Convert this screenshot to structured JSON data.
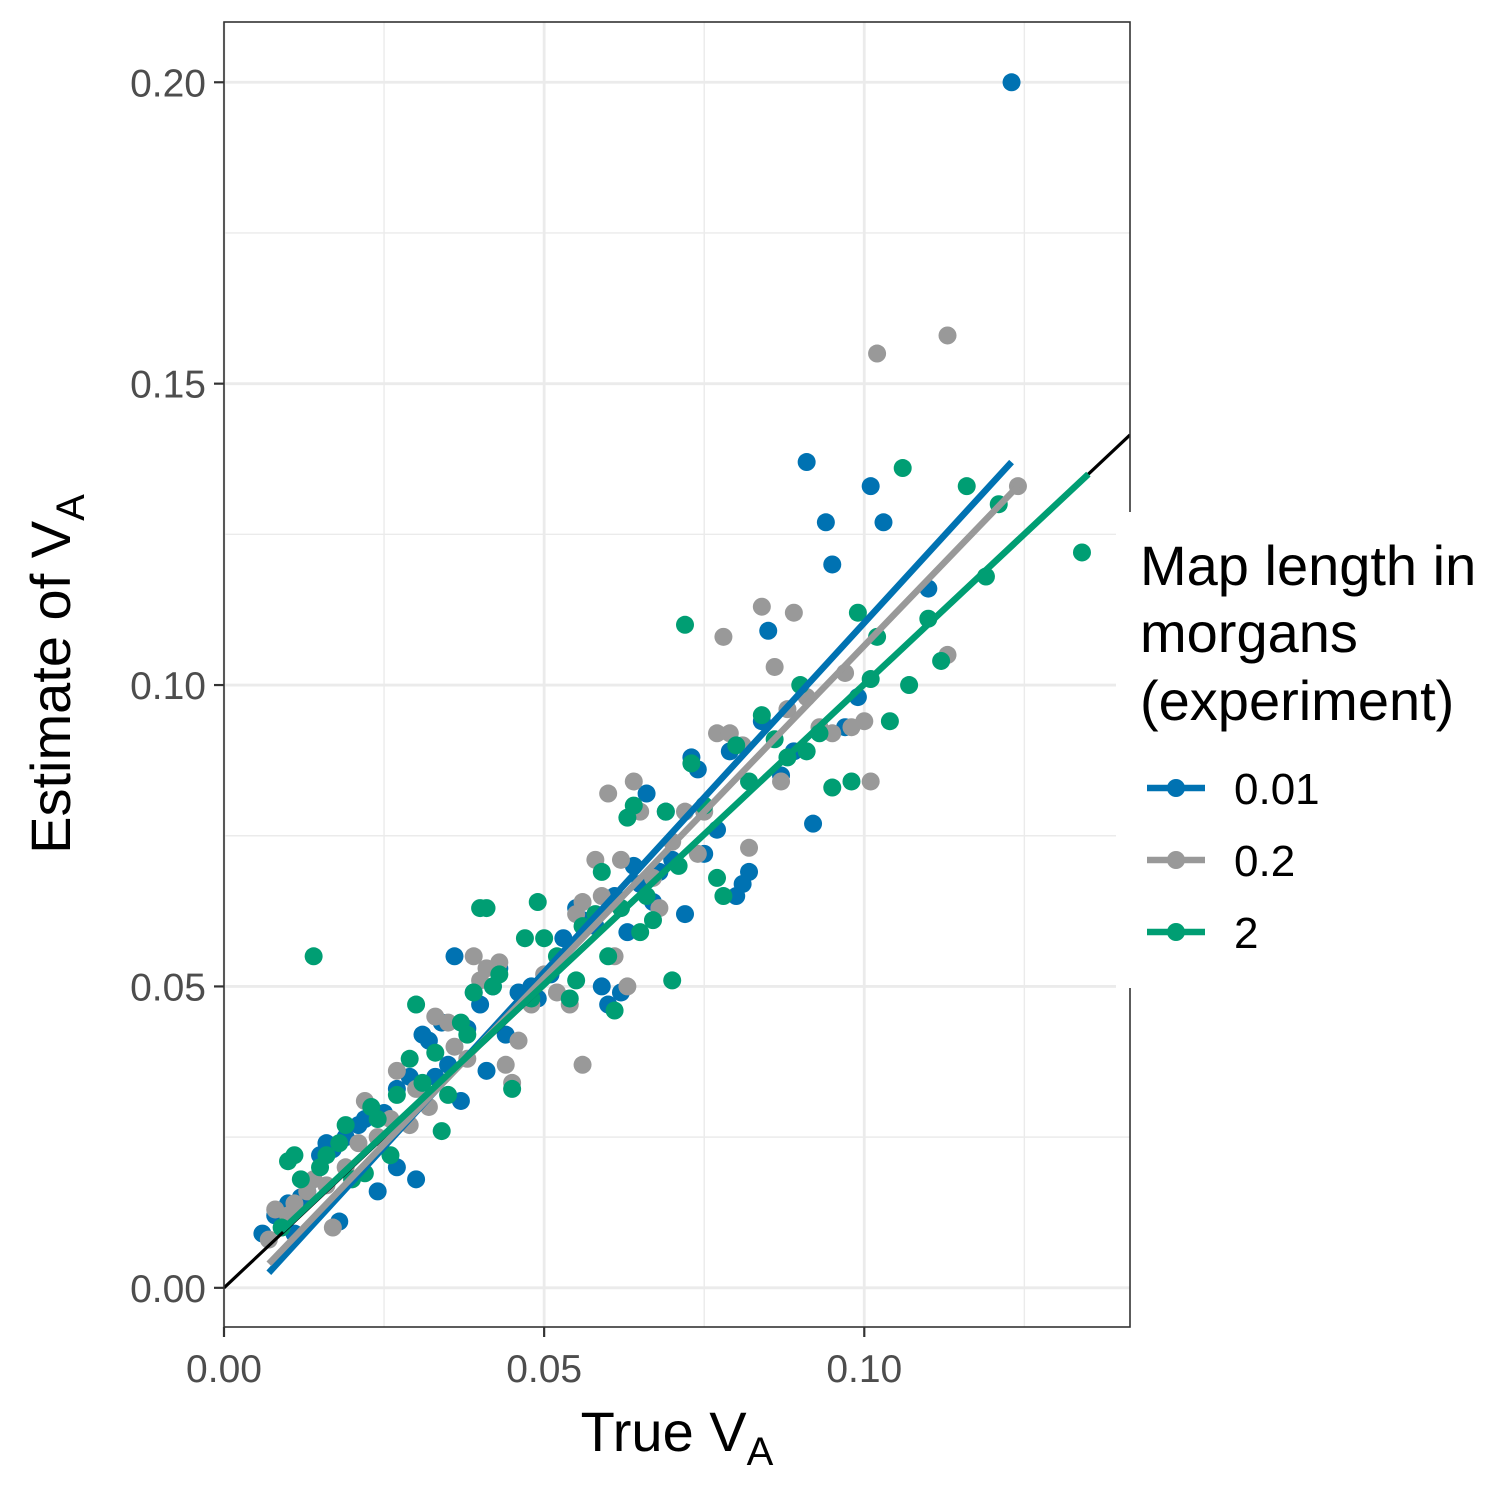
{
  "chart_data": {
    "type": "scatter",
    "xlabel": {
      "main": "True V",
      "sub": "A"
    },
    "ylabel": {
      "main": "Estimate of V",
      "sub": "A"
    },
    "xlim": [
      0.0,
      0.1415
    ],
    "ylim": [
      -0.0065,
      0.21
    ],
    "x_ticks": [
      0.0,
      0.05,
      0.1
    ],
    "x_tick_labels": [
      "0.00",
      "0.05",
      "0.10"
    ],
    "y_ticks": [
      0.0,
      0.05,
      0.1,
      0.15,
      0.2
    ],
    "y_tick_labels": [
      "0.00",
      "0.05",
      "0.10",
      "0.15",
      "0.20"
    ],
    "grid": true,
    "legend": {
      "title_lines": [
        "Map length in",
        "morgans",
        "(experiment)"
      ],
      "position": "right"
    },
    "reference_line": {
      "slope": 1,
      "intercept": 0,
      "color": "#000000"
    },
    "series": [
      {
        "name": "0.01",
        "color": "#0072B2",
        "fit": [
          [
            0.007,
            0.0025
          ],
          [
            0.123,
            0.137
          ]
        ],
        "points": [
          [
            0.006,
            0.009
          ],
          [
            0.008,
            0.012
          ],
          [
            0.01,
            0.014
          ],
          [
            0.011,
            0.009
          ],
          [
            0.012,
            0.015
          ],
          [
            0.013,
            0.016
          ],
          [
            0.015,
            0.022
          ],
          [
            0.016,
            0.024
          ],
          [
            0.017,
            0.023
          ],
          [
            0.018,
            0.011
          ],
          [
            0.019,
            0.025
          ],
          [
            0.021,
            0.027
          ],
          [
            0.022,
            0.028
          ],
          [
            0.024,
            0.016
          ],
          [
            0.025,
            0.029
          ],
          [
            0.027,
            0.033
          ],
          [
            0.027,
            0.02
          ],
          [
            0.029,
            0.035
          ],
          [
            0.03,
            0.018
          ],
          [
            0.031,
            0.042
          ],
          [
            0.032,
            0.041
          ],
          [
            0.033,
            0.035
          ],
          [
            0.034,
            0.044
          ],
          [
            0.035,
            0.037
          ],
          [
            0.036,
            0.055
          ],
          [
            0.037,
            0.031
          ],
          [
            0.038,
            0.043
          ],
          [
            0.039,
            0.049
          ],
          [
            0.04,
            0.047
          ],
          [
            0.041,
            0.036
          ],
          [
            0.042,
            0.05
          ],
          [
            0.043,
            0.053
          ],
          [
            0.044,
            0.042
          ],
          [
            0.046,
            0.049
          ],
          [
            0.048,
            0.05
          ],
          [
            0.049,
            0.048
          ],
          [
            0.051,
            0.052
          ],
          [
            0.053,
            0.058
          ],
          [
            0.055,
            0.063
          ],
          [
            0.056,
            0.061
          ],
          [
            0.058,
            0.06
          ],
          [
            0.059,
            0.05
          ],
          [
            0.06,
            0.047
          ],
          [
            0.061,
            0.065
          ],
          [
            0.062,
            0.049
          ],
          [
            0.063,
            0.059
          ],
          [
            0.064,
            0.07
          ],
          [
            0.065,
            0.067
          ],
          [
            0.066,
            0.082
          ],
          [
            0.067,
            0.064
          ],
          [
            0.068,
            0.069
          ],
          [
            0.069,
            0.079
          ],
          [
            0.07,
            0.071
          ],
          [
            0.072,
            0.062
          ],
          [
            0.073,
            0.088
          ],
          [
            0.074,
            0.086
          ],
          [
            0.075,
            0.072
          ],
          [
            0.077,
            0.076
          ],
          [
            0.079,
            0.089
          ],
          [
            0.08,
            0.065
          ],
          [
            0.081,
            0.067
          ],
          [
            0.082,
            0.069
          ],
          [
            0.084,
            0.094
          ],
          [
            0.085,
            0.109
          ],
          [
            0.087,
            0.085
          ],
          [
            0.089,
            0.089
          ],
          [
            0.091,
            0.137
          ],
          [
            0.092,
            0.077
          ],
          [
            0.094,
            0.127
          ],
          [
            0.095,
            0.12
          ],
          [
            0.097,
            0.093
          ],
          [
            0.099,
            0.098
          ],
          [
            0.101,
            0.133
          ],
          [
            0.103,
            0.127
          ],
          [
            0.11,
            0.116
          ],
          [
            0.123,
            0.2
          ]
        ]
      },
      {
        "name": "0.2",
        "color": "#999999",
        "fit": [
          [
            0.007,
            0.004
          ],
          [
            0.124,
            0.133
          ]
        ],
        "points": [
          [
            0.007,
            0.008
          ],
          [
            0.008,
            0.013
          ],
          [
            0.01,
            0.012
          ],
          [
            0.011,
            0.014
          ],
          [
            0.013,
            0.016
          ],
          [
            0.014,
            0.018
          ],
          [
            0.016,
            0.017
          ],
          [
            0.017,
            0.01
          ],
          [
            0.019,
            0.02
          ],
          [
            0.021,
            0.024
          ],
          [
            0.022,
            0.031
          ],
          [
            0.024,
            0.025
          ],
          [
            0.026,
            0.028
          ],
          [
            0.027,
            0.036
          ],
          [
            0.029,
            0.027
          ],
          [
            0.03,
            0.033
          ],
          [
            0.032,
            0.03
          ],
          [
            0.033,
            0.045
          ],
          [
            0.035,
            0.044
          ],
          [
            0.036,
            0.04
          ],
          [
            0.038,
            0.038
          ],
          [
            0.039,
            0.055
          ],
          [
            0.04,
            0.051
          ],
          [
            0.041,
            0.053
          ],
          [
            0.043,
            0.054
          ],
          [
            0.044,
            0.037
          ],
          [
            0.045,
            0.034
          ],
          [
            0.046,
            0.041
          ],
          [
            0.048,
            0.047
          ],
          [
            0.05,
            0.052
          ],
          [
            0.052,
            0.049
          ],
          [
            0.054,
            0.047
          ],
          [
            0.055,
            0.062
          ],
          [
            0.056,
            0.064
          ],
          [
            0.056,
            0.037
          ],
          [
            0.058,
            0.071
          ],
          [
            0.059,
            0.065
          ],
          [
            0.06,
            0.082
          ],
          [
            0.061,
            0.055
          ],
          [
            0.062,
            0.071
          ],
          [
            0.063,
            0.05
          ],
          [
            0.064,
            0.084
          ],
          [
            0.065,
            0.079
          ],
          [
            0.067,
            0.068
          ],
          [
            0.068,
            0.063
          ],
          [
            0.07,
            0.074
          ],
          [
            0.072,
            0.079
          ],
          [
            0.074,
            0.072
          ],
          [
            0.075,
            0.079
          ],
          [
            0.077,
            0.092
          ],
          [
            0.078,
            0.108
          ],
          [
            0.079,
            0.092
          ],
          [
            0.081,
            0.09
          ],
          [
            0.082,
            0.073
          ],
          [
            0.084,
            0.113
          ],
          [
            0.086,
            0.103
          ],
          [
            0.087,
            0.084
          ],
          [
            0.088,
            0.096
          ],
          [
            0.089,
            0.112
          ],
          [
            0.091,
            0.098
          ],
          [
            0.093,
            0.093
          ],
          [
            0.095,
            0.092
          ],
          [
            0.097,
            0.102
          ],
          [
            0.098,
            0.093
          ],
          [
            0.1,
            0.094
          ],
          [
            0.101,
            0.084
          ],
          [
            0.102,
            0.155
          ],
          [
            0.113,
            0.158
          ],
          [
            0.113,
            0.105
          ],
          [
            0.124,
            0.133
          ]
        ]
      },
      {
        "name": "2",
        "color": "#009E73",
        "fit": [
          [
            0.009,
            0.0095
          ],
          [
            0.135,
            0.135
          ]
        ],
        "points": [
          [
            0.009,
            0.01
          ],
          [
            0.01,
            0.021
          ],
          [
            0.011,
            0.022
          ],
          [
            0.012,
            0.018
          ],
          [
            0.014,
            0.055
          ],
          [
            0.015,
            0.02
          ],
          [
            0.016,
            0.022
          ],
          [
            0.018,
            0.024
          ],
          [
            0.019,
            0.027
          ],
          [
            0.02,
            0.018
          ],
          [
            0.022,
            0.019
          ],
          [
            0.023,
            0.03
          ],
          [
            0.024,
            0.028
          ],
          [
            0.026,
            0.022
          ],
          [
            0.027,
            0.032
          ],
          [
            0.029,
            0.038
          ],
          [
            0.03,
            0.047
          ],
          [
            0.031,
            0.034
          ],
          [
            0.033,
            0.039
          ],
          [
            0.034,
            0.026
          ],
          [
            0.035,
            0.032
          ],
          [
            0.037,
            0.044
          ],
          [
            0.038,
            0.042
          ],
          [
            0.039,
            0.049
          ],
          [
            0.04,
            0.063
          ],
          [
            0.041,
            0.063
          ],
          [
            0.042,
            0.05
          ],
          [
            0.043,
            0.052
          ],
          [
            0.045,
            0.033
          ],
          [
            0.047,
            0.058
          ],
          [
            0.048,
            0.048
          ],
          [
            0.049,
            0.064
          ],
          [
            0.05,
            0.058
          ],
          [
            0.052,
            0.055
          ],
          [
            0.054,
            0.048
          ],
          [
            0.055,
            0.051
          ],
          [
            0.056,
            0.06
          ],
          [
            0.058,
            0.062
          ],
          [
            0.059,
            0.069
          ],
          [
            0.06,
            0.055
          ],
          [
            0.061,
            0.046
          ],
          [
            0.062,
            0.063
          ],
          [
            0.063,
            0.078
          ],
          [
            0.064,
            0.08
          ],
          [
            0.065,
            0.059
          ],
          [
            0.066,
            0.065
          ],
          [
            0.067,
            0.061
          ],
          [
            0.069,
            0.079
          ],
          [
            0.07,
            0.051
          ],
          [
            0.071,
            0.07
          ],
          [
            0.072,
            0.11
          ],
          [
            0.073,
            0.087
          ],
          [
            0.075,
            0.08
          ],
          [
            0.077,
            0.068
          ],
          [
            0.078,
            0.065
          ],
          [
            0.08,
            0.09
          ],
          [
            0.082,
            0.084
          ],
          [
            0.084,
            0.095
          ],
          [
            0.086,
            0.091
          ],
          [
            0.088,
            0.088
          ],
          [
            0.09,
            0.1
          ],
          [
            0.091,
            0.089
          ],
          [
            0.093,
            0.092
          ],
          [
            0.095,
            0.083
          ],
          [
            0.098,
            0.084
          ],
          [
            0.099,
            0.112
          ],
          [
            0.101,
            0.101
          ],
          [
            0.102,
            0.108
          ],
          [
            0.104,
            0.094
          ],
          [
            0.106,
            0.136
          ],
          [
            0.107,
            0.1
          ],
          [
            0.11,
            0.111
          ],
          [
            0.112,
            0.104
          ],
          [
            0.116,
            0.133
          ],
          [
            0.119,
            0.118
          ],
          [
            0.121,
            0.13
          ],
          [
            0.134,
            0.122
          ]
        ]
      }
    ]
  }
}
